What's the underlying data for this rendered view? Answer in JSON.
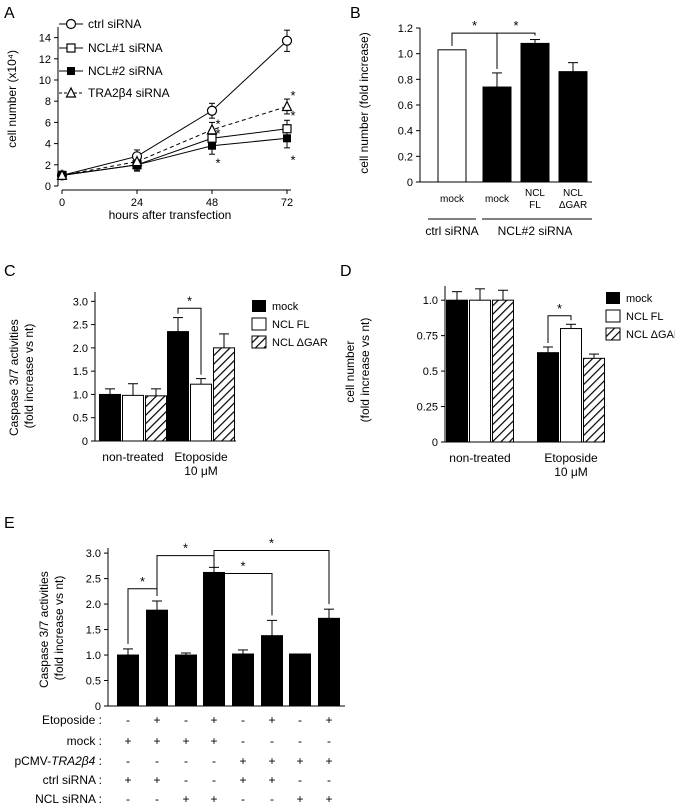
{
  "chart_data": [
    {
      "panel": "A",
      "type": "line",
      "x": [
        0,
        24,
        48,
        72
      ],
      "xlabel": "hours after transfection",
      "ylabel": "cell number (x10⁴)",
      "ylim": [
        0,
        15
      ],
      "yticks": [
        0,
        2,
        4,
        6,
        8,
        10,
        12,
        14
      ],
      "xticks": [
        0,
        24,
        48,
        72
      ],
      "series": [
        {
          "name": "ctrl siRNA",
          "marker": "circle-open",
          "dashed": false,
          "values": [
            1.0,
            2.8,
            7.1,
            13.7
          ],
          "errors": [
            0.2,
            0.6,
            0.7,
            1.0
          ]
        },
        {
          "name": "NCL#1 siRNA",
          "marker": "square-open",
          "dashed": false,
          "values": [
            1.0,
            2.0,
            4.5,
            5.4
          ],
          "errors": [
            0.2,
            0.5,
            0.6,
            0.8
          ]
        },
        {
          "name": "NCL#2 siRNA",
          "marker": "square-filled",
          "dashed": false,
          "values": [
            1.0,
            2.0,
            3.8,
            4.5
          ],
          "errors": [
            0.2,
            0.6,
            0.8,
            0.9
          ]
        },
        {
          "name": "TRA2β4 siRNA",
          "marker": "triangle-open",
          "dashed": true,
          "values": [
            1.0,
            2.3,
            5.3,
            7.5
          ],
          "errors": [
            0.2,
            0.6,
            0.7,
            0.7
          ]
        }
      ],
      "sig_marks": [
        {
          "x": 48,
          "y": 5.8,
          "text": "*"
        },
        {
          "x": 48,
          "y": 4.9,
          "text": "*"
        },
        {
          "x": 48,
          "y": 2.1,
          "text": "*"
        },
        {
          "x": 72,
          "y": 8.5,
          "text": "*"
        },
        {
          "x": 72,
          "y": 6.6,
          "text": "*"
        },
        {
          "x": 72,
          "y": 2.4,
          "text": "*"
        }
      ]
    },
    {
      "panel": "B",
      "type": "bar",
      "ylabel": "cell number (fold increase)",
      "ylim": [
        0,
        1.2
      ],
      "yticks": [
        "0",
        "0.2",
        "0.4",
        "0.6",
        "0.8",
        "1.0",
        "1.2"
      ],
      "categories": [
        "mock",
        "mock",
        "NCL FL",
        "NCL ΔGAR"
      ],
      "category_lines": [
        [
          "mock"
        ],
        [
          "mock"
        ],
        [
          "NCL",
          "FL"
        ],
        [
          "NCL",
          "ΔGAR"
        ]
      ],
      "values": [
        1.03,
        0.74,
        1.08,
        0.86
      ],
      "errors": [
        0,
        0.11,
        0.03,
        0.07
      ],
      "fills": [
        "white",
        "black",
        "black",
        "black"
      ],
      "groups": [
        {
          "label": "ctrl siRNA",
          "from": 0,
          "to": 0
        },
        {
          "label": "NCL#2 siRNA",
          "from": 1,
          "to": 3
        }
      ],
      "brackets": [
        {
          "from": 0,
          "to": 1,
          "y": 1.16,
          "text": "*"
        },
        {
          "from": 1,
          "to": 2,
          "y": 1.16,
          "text": "*"
        }
      ]
    },
    {
      "panel": "C",
      "type": "bar",
      "ylabel_lines": [
        "Caspase 3/7 activities",
        "(fold increase vs nt)"
      ],
      "ylim": [
        0,
        3.2
      ],
      "yticks": [
        "0",
        "0.5",
        "1.0",
        "1.5",
        "2.0",
        "2.5",
        "3.0"
      ],
      "groups": [
        {
          "lines": [
            "non-treated"
          ]
        },
        {
          "lines": [
            "Etoposide",
            "10 μM"
          ]
        }
      ],
      "series": [
        {
          "name": "mock",
          "fill": "black",
          "values": [
            1.0,
            2.35
          ],
          "errors": [
            0.12,
            0.3
          ]
        },
        {
          "name": "NCL FL",
          "fill": "white",
          "values": [
            0.98,
            1.22
          ],
          "errors": [
            0.25,
            0.12
          ]
        },
        {
          "name": "NCL ΔGAR",
          "fill": "hatch",
          "values": [
            0.97,
            2.0
          ],
          "errors": [
            0.15,
            0.3
          ]
        }
      ],
      "brackets": [
        {
          "group": 1,
          "from": 0,
          "to": 1,
          "y": 2.85,
          "text": "*"
        }
      ]
    },
    {
      "panel": "D",
      "type": "bar",
      "ylabel_lines": [
        "cell number",
        "(fold increase vs nt)"
      ],
      "ylim": [
        0,
        1.1
      ],
      "yticks": [
        "0",
        "0.25",
        "0.5",
        "0.75",
        "1.0"
      ],
      "groups": [
        {
          "lines": [
            "non-treated"
          ]
        },
        {
          "lines": [
            "Etoposide",
            "10 μM"
          ]
        }
      ],
      "series": [
        {
          "name": "mock",
          "fill": "black",
          "values": [
            1.0,
            0.63
          ],
          "errors": [
            0.06,
            0.04
          ]
        },
        {
          "name": "NCL FL",
          "fill": "white",
          "values": [
            1.0,
            0.8
          ],
          "errors": [
            0.08,
            0.03
          ]
        },
        {
          "name": "NCL ΔGAR",
          "fill": "hatch",
          "values": [
            1.0,
            0.59
          ],
          "errors": [
            0.07,
            0.03
          ]
        }
      ],
      "brackets": [
        {
          "group": 1,
          "from": 0,
          "to": 1,
          "y": 0.89,
          "text": "*"
        }
      ]
    },
    {
      "panel": "E",
      "type": "bar",
      "ylabel_lines": [
        "Caspase 3/7 activities",
        "(fold increase vs nt)"
      ],
      "ylim": [
        0,
        3.1
      ],
      "yticks": [
        "0",
        "0.5",
        "1.0",
        "1.5",
        "2.0",
        "2.5",
        "3.0"
      ],
      "values": [
        1.0,
        1.88,
        1.0,
        2.62,
        1.02,
        1.38,
        1.02,
        1.72
      ],
      "errors": [
        0.12,
        0.18,
        0.04,
        0.1,
        0.08,
        0.3,
        0,
        0.18
      ],
      "brackets": [
        {
          "from": 0,
          "to": 1,
          "y": 2.3,
          "text": "*"
        },
        {
          "from": 1,
          "to": 3,
          "y": 2.95,
          "text": "*"
        },
        {
          "from": 3,
          "to": 5,
          "y": 2.6,
          "text": "*"
        },
        {
          "from": 3,
          "to": 7,
          "y": 3.05,
          "text": "*"
        }
      ],
      "conditions": [
        {
          "label": "Etoposide :",
          "italic": "",
          "values": [
            "-",
            "+",
            "-",
            "+",
            "-",
            "+",
            "-",
            "+"
          ]
        },
        {
          "label": "mock :",
          "italic": "",
          "values": [
            "+",
            "+",
            "+",
            "+",
            "-",
            "-",
            "-",
            "-"
          ]
        },
        {
          "label": "pCMV-",
          "italic": "TRA2β4",
          "suffix": " :",
          "values": [
            "-",
            "-",
            "-",
            "-",
            "+",
            "+",
            "+",
            "+"
          ]
        },
        {
          "label": "ctrl siRNA :",
          "italic": "",
          "values": [
            "+",
            "+",
            "-",
            "-",
            "+",
            "+",
            "-",
            "-"
          ]
        },
        {
          "label": "NCL siRNA :",
          "italic": "",
          "values": [
            "-",
            "-",
            "+",
            "+",
            "-",
            "-",
            "+",
            "+"
          ]
        }
      ]
    }
  ],
  "panels": {
    "a": "A",
    "b": "B",
    "c": "C",
    "d": "D",
    "e": "E"
  },
  "legend_c": [
    "mock",
    "NCL FL",
    "NCL ΔGAR"
  ],
  "legend_d": [
    "mock",
    "NCL FL",
    "NCL ΔGAR"
  ]
}
